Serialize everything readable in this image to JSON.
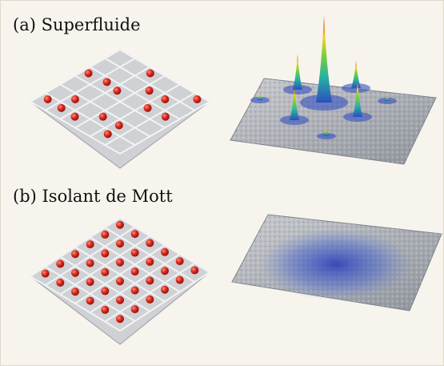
{
  "panels": [
    {
      "label": "(a) Superfluide"
    },
    {
      "label": "(b) Isolant de Mott"
    }
  ]
}
